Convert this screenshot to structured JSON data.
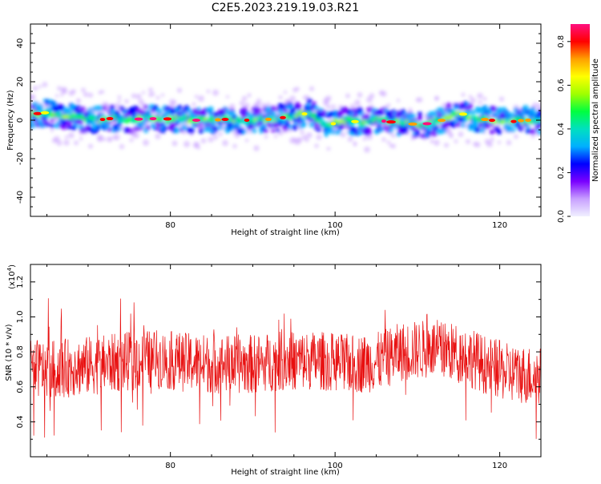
{
  "title": "C2E5.2023.219.19.03.R21",
  "chart_data": [
    {
      "type": "heatmap",
      "panel": "spectrogram",
      "xlabel": "Height of straight line (km)",
      "ylabel": "Frequency (Hz)",
      "xlim": [
        63,
        125
      ],
      "ylim": [
        -50,
        50
      ],
      "x_ticks": [
        80,
        100,
        120
      ],
      "y_ticks": [
        40,
        20,
        0,
        -20,
        -40
      ],
      "x_tick_labels": [
        "80",
        "100",
        "120"
      ],
      "y_tick_labels": [
        "40",
        "20",
        "0",
        "-20",
        "-40"
      ],
      "colorbar": {
        "label": "Normalized spectral amplitude",
        "range": [
          0,
          0.88
        ],
        "ticks": [
          0.0,
          0.2,
          0.4,
          0.6,
          0.8
        ],
        "tick_labels": [
          "0.0",
          "0.2",
          "0.4",
          "0.6",
          "0.8"
        ],
        "colormap": [
          "#f0f0ff",
          "#c8a0ff",
          "#7a00ff",
          "#0000ff",
          "#00b0ff",
          "#00e0c0",
          "#00ff40",
          "#a0ff00",
          "#ffff00",
          "#ffa000",
          "#ff0000",
          "#ff1080"
        ]
      },
      "ridge_frequency_hz": [
        [
          63,
          3
        ],
        [
          65,
          4
        ],
        [
          67,
          2
        ],
        [
          69,
          1
        ],
        [
          71,
          0
        ],
        [
          73,
          1
        ],
        [
          75,
          0
        ],
        [
          77,
          1
        ],
        [
          79,
          0.5
        ],
        [
          81,
          1
        ],
        [
          83,
          0
        ],
        [
          85,
          0
        ],
        [
          87,
          0.5
        ],
        [
          89,
          0
        ],
        [
          91,
          0
        ],
        [
          93,
          1
        ],
        [
          95,
          2
        ],
        [
          97,
          4
        ],
        [
          99,
          -3
        ],
        [
          101,
          0
        ],
        [
          103,
          -1
        ],
        [
          105,
          0
        ],
        [
          107,
          -1
        ],
        [
          109,
          -2
        ],
        [
          111,
          -2
        ],
        [
          113,
          0
        ],
        [
          115,
          4
        ],
        [
          117,
          1
        ],
        [
          119,
          0
        ],
        [
          121,
          -1
        ],
        [
          123,
          0
        ],
        [
          125,
          0
        ]
      ],
      "band_halfwidth_hz": 7
    },
    {
      "type": "line",
      "panel": "snr",
      "xlabel": "Height of straight line (km)",
      "ylabel": "SNR (10 * v/v)",
      "y_multiplier": "(x10",
      "y_multiplier_exp": "4",
      "y_multiplier_close": ")",
      "xlim": [
        63,
        125
      ],
      "ylim": [
        0.2,
        1.3
      ],
      "x_ticks": [
        80,
        100,
        120
      ],
      "y_ticks": [
        0.4,
        0.6,
        0.8,
        1.0,
        1.2
      ],
      "x_tick_labels": [
        "80",
        "100",
        "120"
      ],
      "y_tick_labels": [
        "0.4",
        "0.6",
        "0.8",
        "1.0",
        "1.2"
      ],
      "series": [
        {
          "color": "#e81010",
          "trend": [
            [
              63,
              0.7
            ],
            [
              66,
              0.7
            ],
            [
              70,
              0.72
            ],
            [
              74,
              0.74
            ],
            [
              78,
              0.76
            ],
            [
              82,
              0.74
            ],
            [
              86,
              0.73
            ],
            [
              90,
              0.73
            ],
            [
              94,
              0.75
            ],
            [
              98,
              0.75
            ],
            [
              102,
              0.73
            ],
            [
              105,
              0.74
            ],
            [
              108,
              0.8
            ],
            [
              112,
              0.82
            ],
            [
              116,
              0.78
            ],
            [
              118,
              0.73
            ],
            [
              121,
              0.68
            ],
            [
              125,
              0.66
            ]
          ],
          "spread": 0.17
        }
      ]
    }
  ]
}
